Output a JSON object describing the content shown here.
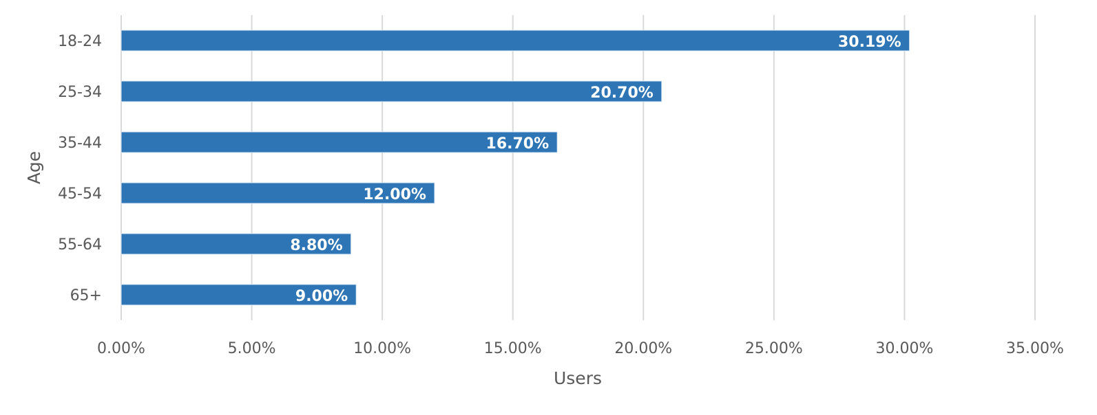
{
  "chart_data": {
    "type": "bar",
    "orientation": "horizontal",
    "categories": [
      "18-24",
      "25-34",
      "35-44",
      "45-54",
      "55-64",
      "65+"
    ],
    "values": [
      30.19,
      20.7,
      16.7,
      12.0,
      8.8,
      9.0
    ],
    "data_labels": [
      "30.19%",
      "20.70%",
      "16.70%",
      "12.00%",
      "8.80%",
      "9.00%"
    ],
    "x_ticks": [
      "0.00%",
      "5.00%",
      "10.00%",
      "15.00%",
      "20.00%",
      "25.00%",
      "30.00%",
      "35.00%"
    ],
    "xlim": [
      0,
      35
    ],
    "xlabel": "Users",
    "ylabel": "Age",
    "grid": "vertical",
    "bar_color": "#2e75b6",
    "label_color": "#ffffff"
  }
}
